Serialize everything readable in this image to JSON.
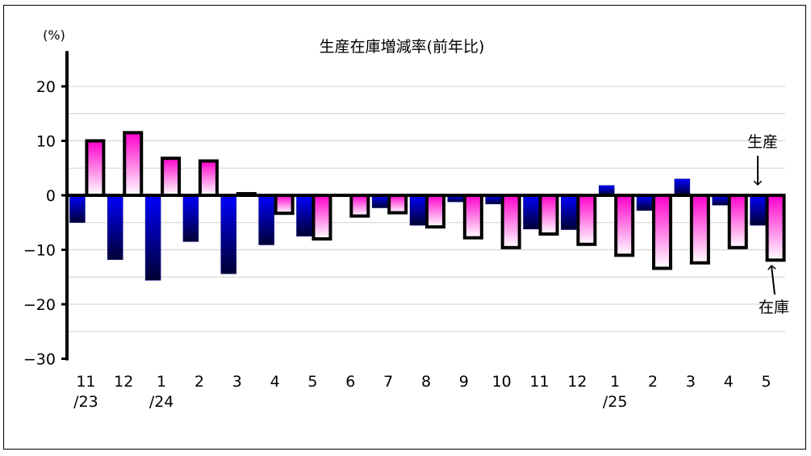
{
  "chart_data": {
    "type": "bar",
    "title": "生産在庫増減率(前年比)",
    "unit_label": "(%)",
    "ylim": [
      -30,
      25
    ],
    "y_ticks": [
      20,
      10,
      0,
      -10,
      -20,
      -30
    ],
    "y_tick_labels": [
      "20",
      "10",
      "0",
      "−10",
      "−20",
      "−30"
    ],
    "grid": true,
    "categories": [
      "11",
      "12",
      "1",
      "2",
      "3",
      "4",
      "5",
      "6",
      "7",
      "8",
      "9",
      "10",
      "11",
      "12",
      "1",
      "2",
      "3",
      "4",
      "5"
    ],
    "category_sublabels": [
      "/23",
      "",
      "/24",
      "",
      "",
      "",
      "",
      "",
      "",
      "",
      "",
      "",
      "",
      "",
      "/25",
      "",
      "",
      "",
      ""
    ],
    "series": [
      {
        "name": "生産",
        "color_top": "#0000ff",
        "color_bottom": "#000033",
        "values": [
          -5.0,
          -11.8,
          -15.6,
          -8.5,
          -14.4,
          -9.1,
          -7.5,
          0.0,
          -2.3,
          -5.5,
          -1.2,
          -1.6,
          -6.2,
          -6.3,
          1.8,
          -2.8,
          3.0,
          -1.8,
          -5.5
        ]
      },
      {
        "name": "在庫",
        "color_top": "#ff00cc",
        "color_bottom": "#ffffff",
        "values": [
          10.0,
          11.5,
          6.8,
          6.3,
          0.3,
          -3.3,
          -8.0,
          -3.8,
          -3.2,
          -5.8,
          -7.8,
          -9.6,
          -7.1,
          -9.0,
          -11.0,
          -13.4,
          -12.4,
          -9.6,
          -11.9
        ]
      }
    ],
    "annotations": [
      {
        "text": "生産",
        "target_series": "生産"
      },
      {
        "text": "在庫",
        "target_series": "在庫"
      }
    ]
  }
}
